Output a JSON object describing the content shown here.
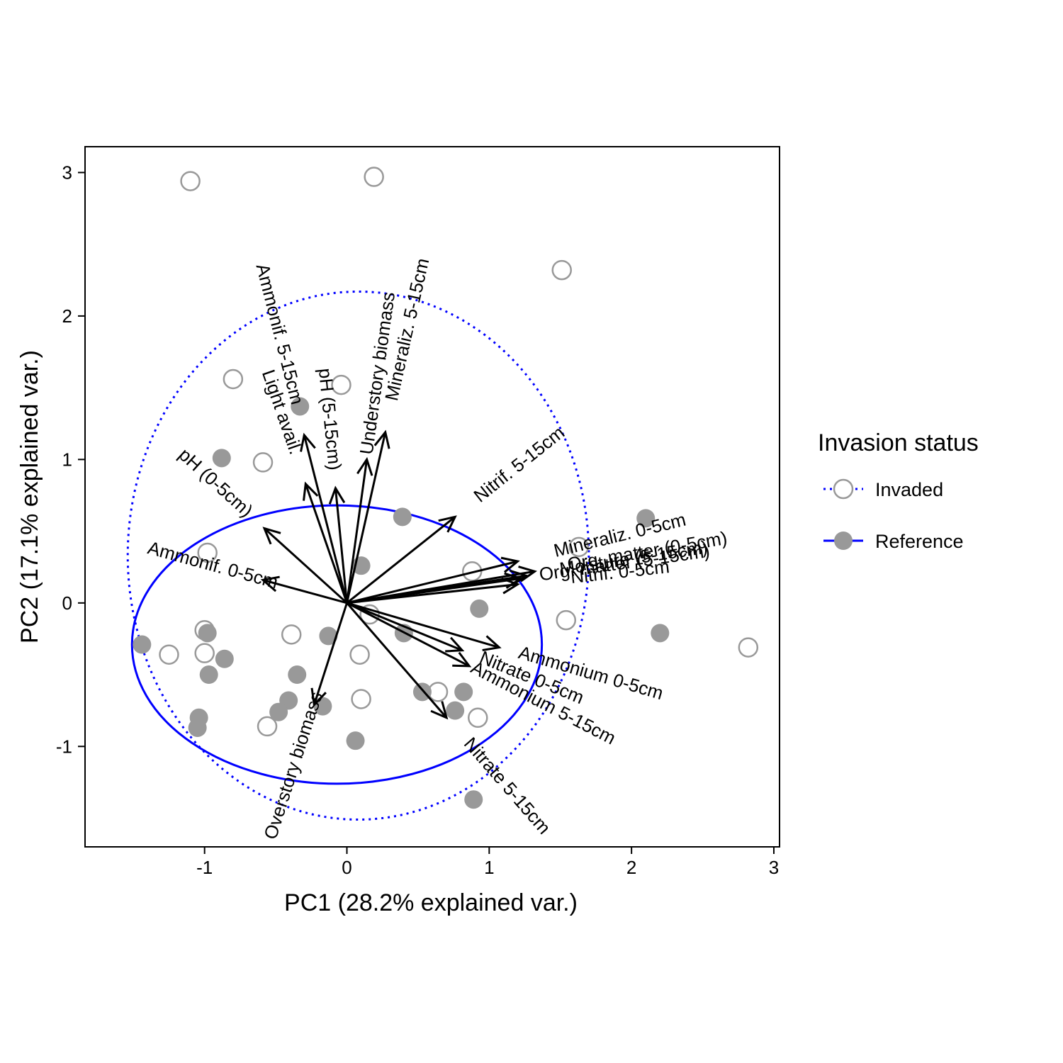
{
  "chart_data": {
    "type": "scatter",
    "xlabel": "PC1 (28.2% explained var.)",
    "ylabel": "PC2 (17.1% explained var.)",
    "xlim": [
      -1.84,
      3.04
    ],
    "ylim": [
      -1.7,
      3.18
    ],
    "xticks": [
      -1,
      0,
      1,
      2,
      3
    ],
    "yticks": [
      -1,
      0,
      1,
      2,
      3
    ],
    "tick_labels_x": [
      "-1",
      "0",
      "1",
      "2",
      "3"
    ],
    "tick_labels_y": [
      "-1",
      "0",
      "1",
      "2",
      "3"
    ],
    "grid": false,
    "legend": {
      "title": "Invasion status",
      "placement": "right",
      "entries": [
        "Invaded",
        "Reference"
      ]
    },
    "colors": {
      "point": "#999999",
      "ellipse": "#0000ff",
      "arrow": "#000000"
    },
    "series": [
      {
        "name": "Invaded",
        "marker": "open-circle",
        "ellipse": {
          "cx": 0.08,
          "cy": 0.33,
          "rx": 1.62,
          "ry": 1.84,
          "style": "dotted"
        },
        "points": [
          [
            -1.1,
            2.94
          ],
          [
            0.19,
            2.97
          ],
          [
            1.51,
            2.32
          ],
          [
            -0.8,
            1.56
          ],
          [
            -0.04,
            1.52
          ],
          [
            -0.59,
            0.98
          ],
          [
            -0.98,
            0.35
          ],
          [
            0.88,
            0.22
          ],
          [
            1.63,
            0.39
          ],
          [
            1.54,
            -0.12
          ],
          [
            2.82,
            -0.31
          ],
          [
            -1.0,
            -0.19
          ],
          [
            -1.25,
            -0.36
          ],
          [
            -1.0,
            -0.35
          ],
          [
            -0.39,
            -0.22
          ],
          [
            0.16,
            -0.08
          ],
          [
            0.09,
            -0.36
          ],
          [
            0.1,
            -0.67
          ],
          [
            -0.56,
            -0.86
          ],
          [
            0.64,
            -0.62
          ],
          [
            0.92,
            -0.8
          ]
        ]
      },
      {
        "name": "Reference",
        "marker": "filled-circle",
        "ellipse": {
          "cx": -0.07,
          "cy": -0.29,
          "rx": 1.44,
          "ry": 0.97,
          "style": "solid"
        },
        "points": [
          [
            -0.33,
            1.37
          ],
          [
            -0.88,
            1.01
          ],
          [
            0.39,
            0.6
          ],
          [
            2.1,
            0.59
          ],
          [
            0.1,
            0.26
          ],
          [
            0.93,
            -0.04
          ],
          [
            2.2,
            -0.21
          ],
          [
            0.4,
            -0.21
          ],
          [
            -0.13,
            -0.23
          ],
          [
            -1.44,
            -0.29
          ],
          [
            -0.98,
            -0.21
          ],
          [
            -0.86,
            -0.39
          ],
          [
            -0.97,
            -0.5
          ],
          [
            -0.35,
            -0.5
          ],
          [
            -0.41,
            -0.68
          ],
          [
            -0.48,
            -0.76
          ],
          [
            -0.17,
            -0.72
          ],
          [
            -1.04,
            -0.8
          ],
          [
            -1.05,
            -0.87
          ],
          [
            0.53,
            -0.62
          ],
          [
            0.76,
            -0.75
          ],
          [
            0.82,
            -0.62
          ],
          [
            0.06,
            -0.96
          ],
          [
            0.89,
            -1.37
          ]
        ]
      }
    ],
    "variables": [
      {
        "label": "Ammonif. 5-15cm",
        "x": -0.3,
        "y": 1.17
      },
      {
        "label": "pH (5-15cm)",
        "x": -0.08,
        "y": 0.8
      },
      {
        "label": "Light avail.",
        "x": -0.29,
        "y": 0.83
      },
      {
        "label": "Understory biomass",
        "x": 0.14,
        "y": 1.0
      },
      {
        "label": "Mineraliz. 5-15cm",
        "x": 0.27,
        "y": 1.19
      },
      {
        "label": "pH (0-5cm)",
        "x": -0.58,
        "y": 0.52
      },
      {
        "label": "Ammonif. 0-5cm",
        "x": -0.59,
        "y": 0.16
      },
      {
        "label": "Nitrif. 5-15cm",
        "x": 0.76,
        "y": 0.6
      },
      {
        "label": "Mineraliz. 0-5cm",
        "x": 1.2,
        "y": 0.29
      },
      {
        "label": "Org. matter (0-5cm)",
        "x": 1.32,
        "y": 0.22
      },
      {
        "label": "Moisture (5-15cm)",
        "x": 1.26,
        "y": 0.19
      },
      {
        "label": "Org. matter (5-15cm)",
        "x": 1.22,
        "y": 0.17
      },
      {
        "label": "Nitrif. 0-5cm",
        "x": 1.2,
        "y": 0.13
      },
      {
        "label": "Ammonium 0-5cm",
        "x": 1.07,
        "y": -0.31
      },
      {
        "label": "Nitrate 0-5cm",
        "x": 0.81,
        "y": -0.33
      },
      {
        "label": "Ammonium 5-15cm",
        "x": 0.86,
        "y": -0.44
      },
      {
        "label": "Nitrate 5-15cm",
        "x": 0.7,
        "y": -0.8
      },
      {
        "label": "Overstory biomass",
        "x": -0.23,
        "y": -0.71
      }
    ]
  }
}
